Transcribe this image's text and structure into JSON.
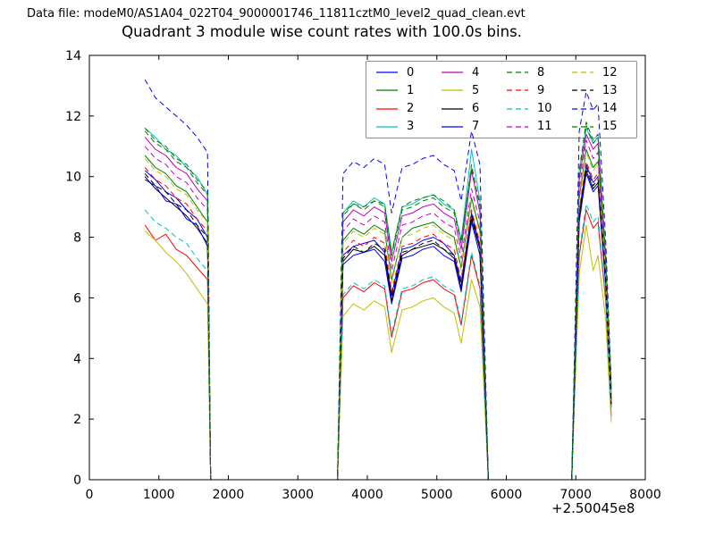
{
  "header": {
    "datafile": "Data file: modeM0/AS1A04_022T04_9000001746_11811cztM0_level2_quad_clean.evt"
  },
  "chart_data": {
    "type": "line",
    "title": "Quadrant 3 module wise count rates with 100.0s bins.",
    "xlabel": "",
    "ylabel": "",
    "xlim": [
      0,
      8000
    ],
    "ylim": [
      0,
      14
    ],
    "xticks": [
      0,
      1000,
      2000,
      3000,
      4000,
      5000,
      6000,
      7000,
      8000
    ],
    "yticks": [
      0,
      2,
      4,
      6,
      8,
      10,
      12,
      14
    ],
    "x_offset_label": "+2.50045e8",
    "bin_seconds": 100.0,
    "grid": false,
    "legend_position": "upper center, inside axes",
    "legend_columns": 4,
    "axis_color": "#000000",
    "x": [
      800,
      950,
      1100,
      1250,
      1400,
      1550,
      1700,
      1745,
      2200,
      2800,
      3400,
      3570,
      3650,
      3800,
      3950,
      4100,
      4250,
      4350,
      4500,
      4650,
      4800,
      4950,
      5100,
      5250,
      5350,
      5500,
      5620,
      5742,
      6200,
      6600,
      6942,
      7050,
      7150,
      7250,
      7320,
      7430,
      7510
    ],
    "series": [
      {
        "name": "0",
        "color": "#0000ff",
        "style": "solid",
        "values": [
          10.2,
          9.9,
          9.5,
          9.3,
          8.9,
          8.6,
          8.0,
          0,
          0,
          0,
          0,
          0,
          7.4,
          7.7,
          7.8,
          7.9,
          7.5,
          6.1,
          7.6,
          7.7,
          7.9,
          8.0,
          7.8,
          7.4,
          6.5,
          8.8,
          7.7,
          0,
          0,
          0,
          0,
          8.8,
          10.4,
          9.8,
          10.0,
          6.6,
          2.6
        ]
      },
      {
        "name": "1",
        "color": "#007f00",
        "style": "solid",
        "values": [
          10.7,
          10.3,
          10.1,
          9.7,
          9.5,
          9.0,
          8.5,
          0,
          0,
          0,
          0,
          0,
          7.9,
          8.3,
          8.1,
          8.4,
          8.2,
          6.6,
          8.0,
          8.3,
          8.4,
          8.5,
          8.2,
          8.0,
          7.0,
          9.3,
          8.2,
          0,
          0,
          0,
          0,
          9.3,
          10.9,
          10.3,
          10.5,
          6.9,
          2.7
        ]
      },
      {
        "name": "2",
        "color": "#ff0000",
        "style": "solid",
        "values": [
          8.4,
          7.9,
          8.1,
          7.6,
          7.4,
          7.0,
          6.6,
          0,
          0,
          0,
          0,
          0,
          6.0,
          6.4,
          6.2,
          6.5,
          6.3,
          4.7,
          6.2,
          6.3,
          6.5,
          6.6,
          6.3,
          6.1,
          5.1,
          7.4,
          6.3,
          0,
          0,
          0,
          0,
          7.4,
          8.9,
          8.3,
          8.5,
          5.9,
          2.1
        ]
      },
      {
        "name": "3",
        "color": "#00bfbf",
        "style": "solid",
        "values": [
          11.6,
          11.3,
          10.9,
          10.7,
          10.3,
          10.0,
          9.4,
          0,
          0,
          0,
          0,
          0,
          8.8,
          9.2,
          9.0,
          9.3,
          9.1,
          7.5,
          9.0,
          9.1,
          9.3,
          9.4,
          9.1,
          8.9,
          7.9,
          10.9,
          9.2,
          0,
          0,
          0,
          0,
          10.2,
          11.6,
          11.1,
          11.3,
          7.3,
          3.0
        ]
      },
      {
        "name": "4",
        "color": "#bf00bf",
        "style": "solid",
        "values": [
          11.3,
          10.9,
          10.7,
          10.3,
          10.1,
          9.6,
          9.2,
          0,
          0,
          0,
          0,
          0,
          8.5,
          8.9,
          8.7,
          9.0,
          8.8,
          7.2,
          8.7,
          8.8,
          9.0,
          9.1,
          8.8,
          8.6,
          7.6,
          10.2,
          8.8,
          0,
          0,
          0,
          0,
          9.9,
          11.4,
          10.9,
          11.1,
          7.1,
          2.9
        ]
      },
      {
        "name": "5",
        "color": "#bfbf00",
        "style": "solid",
        "values": [
          8.2,
          7.9,
          7.5,
          7.2,
          6.8,
          6.3,
          5.8,
          0,
          0,
          0,
          0,
          0,
          5.4,
          5.8,
          5.6,
          5.9,
          5.7,
          4.2,
          5.6,
          5.7,
          5.9,
          6.0,
          5.7,
          5.5,
          4.5,
          6.6,
          5.7,
          0,
          0,
          0,
          0,
          6.8,
          8.4,
          6.9,
          7.4,
          5.3,
          1.9
        ]
      },
      {
        "name": "6",
        "color": "#000000",
        "style": "solid",
        "values": [
          10.0,
          9.6,
          9.3,
          9.0,
          8.7,
          8.3,
          7.8,
          0,
          0,
          0,
          0,
          0,
          7.2,
          7.6,
          7.5,
          7.7,
          7.4,
          5.9,
          7.4,
          7.6,
          7.7,
          7.8,
          7.6,
          7.3,
          6.3,
          8.6,
          7.6,
          0,
          0,
          0,
          0,
          8.6,
          10.2,
          9.6,
          9.8,
          6.5,
          2.5
        ]
      },
      {
        "name": "7",
        "color": "#0000ff",
        "style": "solid",
        "values": [
          9.9,
          9.7,
          9.2,
          9.1,
          8.6,
          8.4,
          7.7,
          0,
          0,
          0,
          0,
          0,
          7.1,
          7.4,
          7.5,
          7.6,
          7.2,
          5.8,
          7.3,
          7.4,
          7.6,
          7.7,
          7.4,
          7.2,
          6.2,
          8.5,
          7.4,
          0,
          0,
          0,
          0,
          8.5,
          10.1,
          9.5,
          9.7,
          6.4,
          2.4
        ]
      },
      {
        "name": "8",
        "color": "#007f00",
        "style": "dashed",
        "values": [
          11.5,
          11.1,
          10.9,
          10.5,
          10.3,
          9.8,
          9.4,
          0,
          0,
          0,
          0,
          0,
          8.7,
          9.1,
          8.9,
          9.2,
          9.0,
          7.4,
          8.9,
          9.0,
          9.2,
          9.3,
          9.0,
          8.8,
          7.8,
          10.4,
          9.0,
          0,
          0,
          0,
          0,
          10.1,
          11.7,
          11.1,
          11.3,
          7.2,
          3.0
        ]
      },
      {
        "name": "9",
        "color": "#ff0000",
        "style": "dashed",
        "values": [
          10.3,
          9.9,
          9.7,
          9.3,
          9.1,
          8.6,
          8.2,
          0,
          0,
          0,
          0,
          0,
          7.5,
          7.9,
          7.7,
          8.0,
          7.8,
          6.2,
          7.7,
          7.8,
          8.0,
          8.1,
          7.8,
          7.6,
          6.6,
          8.9,
          7.8,
          0,
          0,
          0,
          0,
          8.9,
          10.5,
          9.9,
          10.1,
          6.7,
          2.6
        ]
      },
      {
        "name": "10",
        "color": "#00bfbf",
        "style": "dashed",
        "values": [
          8.9,
          8.5,
          8.3,
          8.0,
          7.8,
          7.3,
          6.9,
          0,
          0,
          0,
          0,
          0,
          6.1,
          6.5,
          6.3,
          6.6,
          6.4,
          4.8,
          6.3,
          6.4,
          6.6,
          6.7,
          6.4,
          6.2,
          5.2,
          7.5,
          6.4,
          0,
          0,
          0,
          0,
          7.5,
          9.1,
          8.5,
          8.7,
          6.0,
          2.2
        ]
      },
      {
        "name": "11",
        "color": "#bf00bf",
        "style": "dashed",
        "values": [
          11.0,
          10.6,
          10.4,
          10.0,
          9.8,
          9.3,
          8.9,
          0,
          0,
          0,
          0,
          0,
          8.2,
          8.6,
          8.4,
          8.7,
          8.5,
          6.9,
          8.4,
          8.5,
          8.7,
          8.8,
          8.5,
          8.3,
          7.3,
          9.6,
          8.5,
          0,
          0,
          0,
          0,
          9.6,
          11.2,
          10.6,
          10.8,
          7.0,
          2.8
        ]
      },
      {
        "name": "12",
        "color": "#bfbf00",
        "style": "dashed",
        "values": [
          10.6,
          10.2,
          10.0,
          9.6,
          9.4,
          8.9,
          8.5,
          0,
          0,
          0,
          0,
          0,
          7.8,
          8.2,
          8.0,
          8.3,
          8.1,
          6.5,
          8.0,
          8.1,
          8.3,
          8.4,
          8.1,
          7.9,
          6.9,
          9.2,
          8.1,
          0,
          0,
          0,
          0,
          9.2,
          10.8,
          10.2,
          10.4,
          6.8,
          2.7
        ]
      },
      {
        "name": "13",
        "color": "#000000",
        "style": "dashed",
        "values": [
          10.1,
          9.7,
          9.5,
          9.1,
          8.9,
          8.4,
          8.0,
          0,
          0,
          0,
          0,
          0,
          7.3,
          7.7,
          7.5,
          7.8,
          7.6,
          6.0,
          7.5,
          7.6,
          7.8,
          7.9,
          7.6,
          7.4,
          6.4,
          8.7,
          7.6,
          0,
          0,
          0,
          0,
          8.7,
          10.3,
          9.7,
          9.9,
          6.6,
          2.5
        ]
      },
      {
        "name": "14",
        "color": "#0000ff",
        "style": "dashed",
        "values": [
          13.2,
          12.6,
          12.3,
          12.0,
          11.7,
          11.3,
          10.8,
          0,
          0,
          0,
          0,
          0,
          10.1,
          10.5,
          10.3,
          10.6,
          10.4,
          8.8,
          10.3,
          10.4,
          10.6,
          10.7,
          10.4,
          10.2,
          9.2,
          11.5,
          10.4,
          0,
          0,
          0,
          0,
          11.5,
          12.8,
          12.2,
          12.4,
          7.9,
          3.2
        ]
      },
      {
        "name": "15",
        "color": "#007f00",
        "style": "dashed",
        "values": [
          11.6,
          11.2,
          11.0,
          10.6,
          10.4,
          9.9,
          9.5,
          0,
          0,
          0,
          0,
          0,
          8.8,
          9.1,
          9.0,
          9.2,
          9.1,
          7.5,
          9.0,
          9.2,
          9.3,
          9.4,
          9.2,
          8.9,
          7.9,
          10.3,
          9.1,
          0,
          0,
          0,
          0,
          10.2,
          11.8,
          11.2,
          11.4,
          7.4,
          3.1
        ]
      }
    ]
  }
}
